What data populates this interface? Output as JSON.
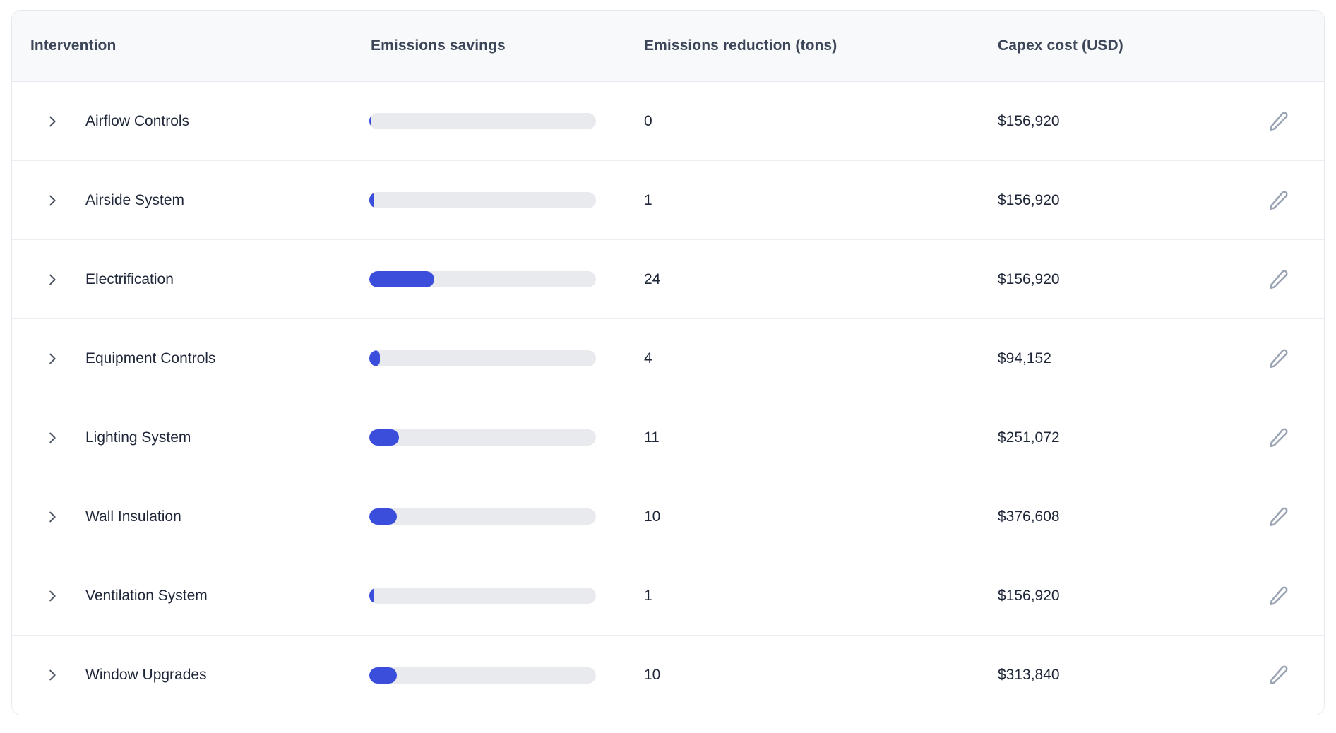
{
  "table": {
    "columns": [
      {
        "label": "Intervention"
      },
      {
        "label": "Emissions savings"
      },
      {
        "label": "Emissions reduction (tons)"
      },
      {
        "label": "Capex cost (USD)"
      }
    ],
    "rows": [
      {
        "name": "Airflow Controls",
        "bar_pct": 0.9,
        "reduction": "0",
        "capex": "$156,920"
      },
      {
        "name": "Airside System",
        "bar_pct": 1.9,
        "reduction": "1",
        "capex": "$156,920"
      },
      {
        "name": "Electrification",
        "bar_pct": 28.6,
        "reduction": "24",
        "capex": "$156,920"
      },
      {
        "name": "Equipment Controls",
        "bar_pct": 4.7,
        "reduction": "4",
        "capex": "$94,152"
      },
      {
        "name": "Lighting System",
        "bar_pct": 13.2,
        "reduction": "11",
        "capex": "$251,072"
      },
      {
        "name": "Wall Insulation",
        "bar_pct": 12.2,
        "reduction": "10",
        "capex": "$376,608"
      },
      {
        "name": "Ventilation System",
        "bar_pct": 1.9,
        "reduction": "1",
        "capex": "$156,920"
      },
      {
        "name": "Window Upgrades",
        "bar_pct": 12.2,
        "reduction": "10",
        "capex": "$313,840"
      }
    ]
  },
  "colors": {
    "accent_bar_fill": "#3b4ddb",
    "bar_track": "#e9eaee",
    "header_background": "#f8f9fb",
    "header_text": "#3c4658",
    "body_text": "#1e2638",
    "divider": "#eceef3",
    "edit_icon": "#9aa4b2",
    "chevron_icon": "#4b5563"
  },
  "icons": {
    "expand": "chevron-right-icon",
    "edit": "pencil-icon"
  }
}
